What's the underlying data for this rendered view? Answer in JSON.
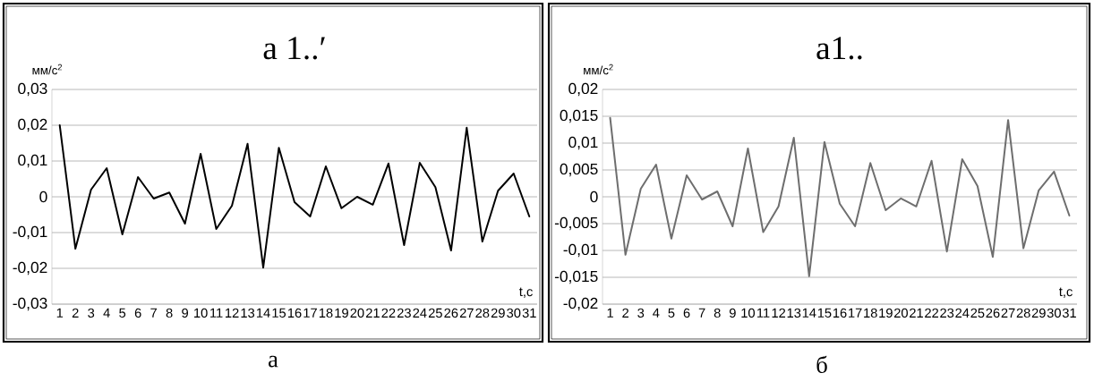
{
  "chart_data": [
    {
      "type": "line",
      "title": "a 1..′",
      "ylabel": "мм/с$^{2}$",
      "xlabel": "t,c",
      "annotations": [
        "а"
      ],
      "categories": [
        "1",
        "2",
        "3",
        "4",
        "5",
        "6",
        "7",
        "8",
        "9",
        "10",
        "11",
        "12",
        "13",
        "14",
        "15",
        "16",
        "17",
        "18",
        "19",
        "20",
        "21",
        "22",
        "23",
        "24",
        "25",
        "26",
        "27",
        "28",
        "29",
        "30",
        "31"
      ],
      "series": [
        {
          "color": "#000000",
          "values": [
            0.02,
            -0.0145,
            0.002,
            0.008,
            -0.0105,
            0.0055,
            -0.0005,
            0.0012,
            -0.0075,
            0.012,
            -0.009,
            -0.0025,
            0.0148,
            -0.0198,
            0.0137,
            -0.0015,
            -0.0055,
            0.0085,
            -0.0032,
            0.0,
            -0.0022,
            0.0093,
            -0.0135,
            0.0095,
            0.0027,
            -0.015,
            0.0193,
            -0.0125,
            0.0017,
            0.0065,
            -0.0055
          ]
        }
      ],
      "ylim": [
        -0.03,
        0.03
      ],
      "yticks": [
        {
          "value": -0.03,
          "label": "-0,03"
        },
        {
          "value": -0.02,
          "label": "-0,02"
        },
        {
          "value": -0.01,
          "label": "-0,01"
        },
        0,
        {
          "value": 0.01,
          "label": "0,01"
        },
        {
          "value": 0.02,
          "label": "0,02"
        },
        {
          "value": 0.03,
          "label": "0,03"
        }
      ],
      "grid": "y",
      "marker": "none",
      "line_style": "solid"
    },
    {
      "type": "line",
      "title": "a1..",
      "ylabel": "мм/с$^{2}$",
      "xlabel": "t,c",
      "annotations": [
        "б"
      ],
      "categories": [
        "1",
        "2",
        "3",
        "4",
        "5",
        "6",
        "7",
        "8",
        "9",
        "10",
        "11",
        "12",
        "13",
        "14",
        "15",
        "16",
        "17",
        "18",
        "19",
        "20",
        "21",
        "22",
        "23",
        "24",
        "25",
        "26",
        "27",
        "28",
        "29",
        "30",
        "31"
      ],
      "series": [
        {
          "color": "#6e6e6e",
          "values": [
            0.0147,
            -0.0108,
            0.0015,
            0.006,
            -0.0078,
            0.004,
            -0.0005,
            0.001,
            -0.0055,
            0.009,
            -0.0066,
            -0.0018,
            0.011,
            -0.0148,
            0.0102,
            -0.0013,
            -0.0055,
            0.0063,
            -0.0025,
            -0.0003,
            -0.0018,
            0.0067,
            -0.0102,
            0.007,
            0.002,
            -0.0112,
            0.0143,
            -0.0096,
            0.0012,
            0.0047,
            -0.0035
          ]
        }
      ],
      "ylim": [
        -0.02,
        0.02
      ],
      "yticks": [
        {
          "value": -0.02,
          "label": "-0,02"
        },
        {
          "value": -0.015,
          "label": "-0,015"
        },
        {
          "value": -0.01,
          "label": "-0,01"
        },
        {
          "value": -0.005,
          "label": "-0,005"
        },
        0,
        {
          "value": 0.005,
          "label": "0,005"
        },
        {
          "value": 0.01,
          "label": "0,01"
        },
        {
          "value": 0.015,
          "label": "0,015"
        },
        {
          "value": 0.02,
          "label": "0,02"
        }
      ],
      "grid": "y",
      "marker": "none",
      "line_style": "solid"
    }
  ]
}
